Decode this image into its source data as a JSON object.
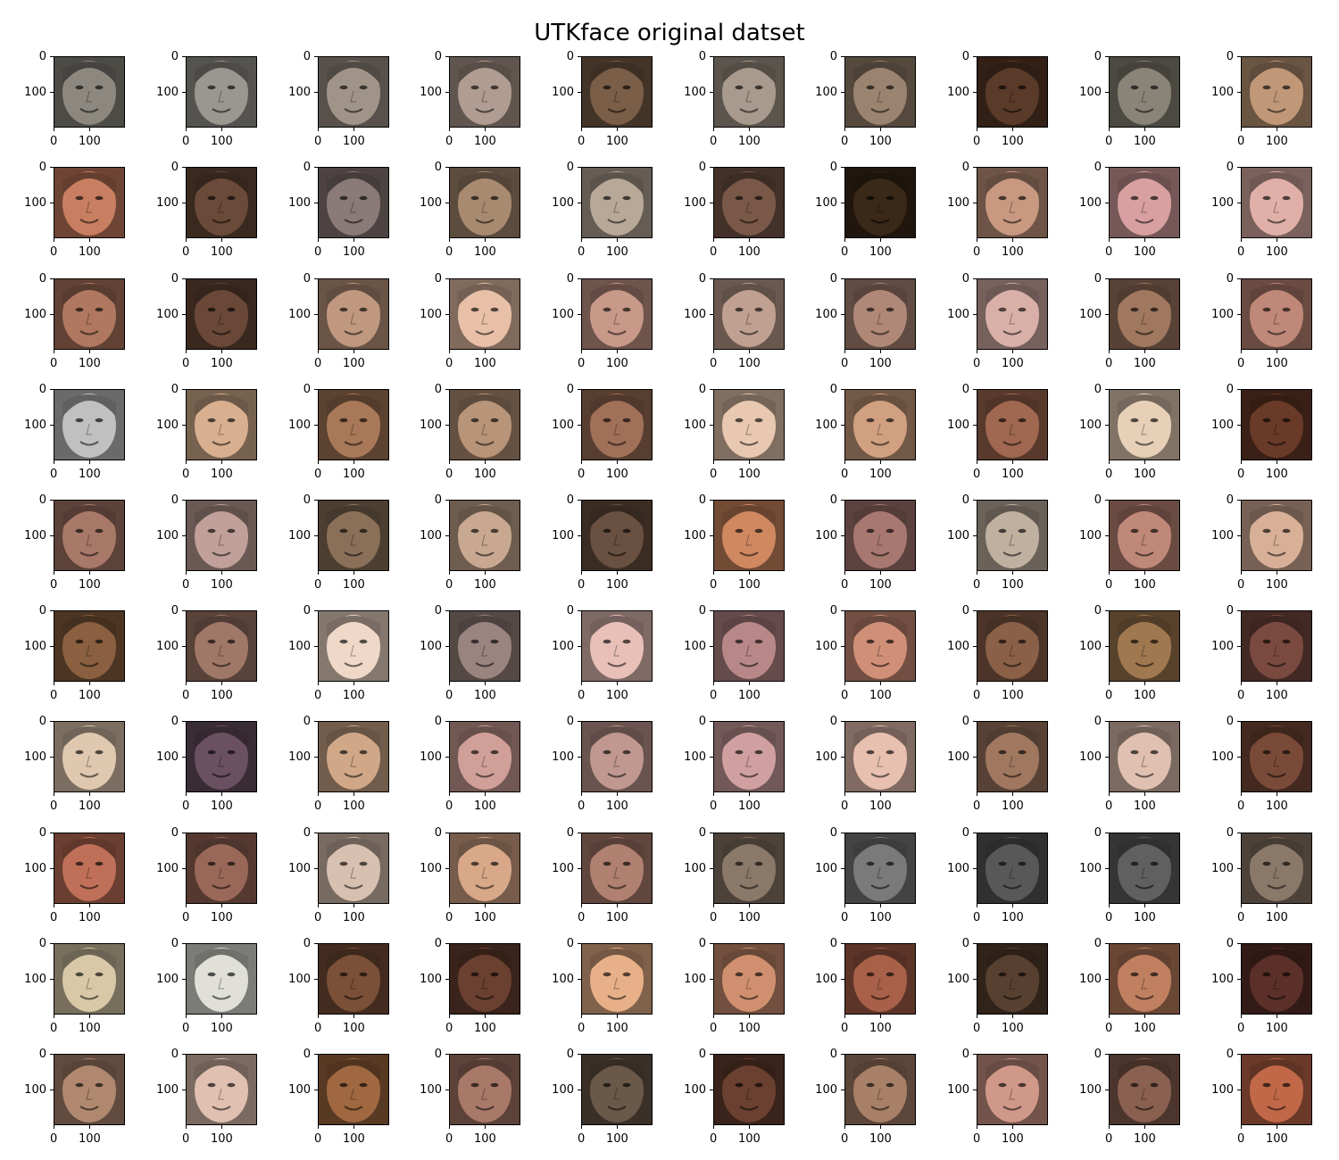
{
  "figure": {
    "title": "UTKface original datset",
    "rows": 10,
    "cols": 10,
    "axis": {
      "y_ticks": [
        "0",
        "100"
      ],
      "x_ticks": [
        "0",
        "100"
      ]
    },
    "image_description": "Grid of cropped face photographs from the UTKface dataset",
    "row_tones": [
      [
        "#8c8880",
        "#9a9690",
        "#a09488",
        "#b09c90",
        "#7a5e48",
        "#a89a8c",
        "#9a8470",
        "#5a3a28",
        "#8a8478",
        "#c09878"
      ],
      [
        "#c87e60",
        "#6a4a38",
        "#8a7a78",
        "#a88a70",
        "#b8a898",
        "#7a5848",
        "#3a2818",
        "#c89880",
        "#d8a0a0",
        "#e0b0a8"
      ],
      [
        "#b07860",
        "#6a4838",
        "#c09880",
        "#e8c0a8",
        "#c89888",
        "#c0a090",
        "#b08878",
        "#d8b0a8",
        "#a07860",
        "#c08878"
      ],
      [
        "#c0c0c0",
        "#d8b090",
        "#a87858",
        "#b89478",
        "#a07058",
        "#e8c8b0",
        "#d0a080",
        "#a06850",
        "#e8d0b8",
        "#6a3a28"
      ],
      [
        "#a87868",
        "#c0a098",
        "#8a7058",
        "#c8a890",
        "#6a5040",
        "#d08860",
        "#a87870",
        "#c0b0a0",
        "#c08878",
        "#d8b098"
      ],
      [
        "#8a6040",
        "#a07868",
        "#f0d8c8",
        "#9a8480",
        "#e8c0b8",
        "#b88888",
        "#d09078",
        "#8a6048",
        "#a07850",
        "#7a4a40"
      ],
      [
        "#e0c8b0",
        "#6a5060",
        "#d0a888",
        "#d0a098",
        "#c09890",
        "#d0a0a0",
        "#e8c0b0",
        "#a07860",
        "#e0c0b0",
        "#7a4a38"
      ],
      [
        "#c07058",
        "#9a6858",
        "#d8c0b0",
        "#d8a888",
        "#b08070",
        "#8a7868",
        "#7a7a7a",
        "#585858",
        "#606060",
        "#8a7868"
      ],
      [
        "#d8c8a8",
        "#e0e0d8",
        "#7a5038",
        "#6a4030",
        "#e8b088",
        "#d09070",
        "#a86048",
        "#584030",
        "#c08060",
        "#5a3028"
      ],
      [
        "#b08870",
        "#e0c0b0",
        "#a06840",
        "#a87868",
        "#6a5848",
        "#6a4030",
        "#a88068",
        "#d09888",
        "#8a6050",
        "#c06848"
      ]
    ]
  }
}
